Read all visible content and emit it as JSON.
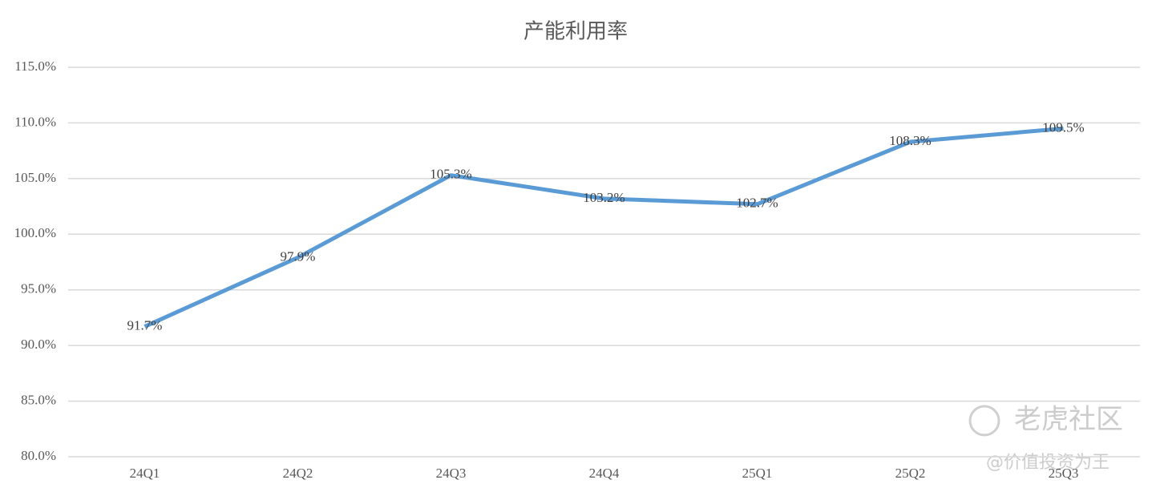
{
  "chart_data": {
    "type": "line",
    "title": "产能利用率",
    "categories": [
      "24Q1",
      "24Q2",
      "24Q3",
      "24Q4",
      "25Q1",
      "25Q2",
      "25Q3"
    ],
    "series": [
      {
        "name": "产能利用率",
        "color": "#5b9bd5",
        "values": [
          91.7,
          97.9,
          105.3,
          103.2,
          102.7,
          108.3,
          109.5
        ],
        "value_labels": [
          "91.7%",
          "97.9%",
          "105.3%",
          "103.2%",
          "102.7%",
          "108.3%",
          "109.5%"
        ]
      }
    ],
    "ylim": [
      80,
      115
    ],
    "yticks": [
      {
        "value": 80,
        "label": "80.0%"
      },
      {
        "value": 85,
        "label": "85.0%"
      },
      {
        "value": 90,
        "label": "90.0%"
      },
      {
        "value": 95,
        "label": "95.0%"
      },
      {
        "value": 100,
        "label": "100.0%"
      },
      {
        "value": 105,
        "label": "105.0%"
      },
      {
        "value": 110,
        "label": "110.0%"
      },
      {
        "value": 115,
        "label": "115.0%"
      }
    ],
    "grid": true
  },
  "watermark": {
    "brand": "老虎社区",
    "author": "@价值投资为王"
  }
}
